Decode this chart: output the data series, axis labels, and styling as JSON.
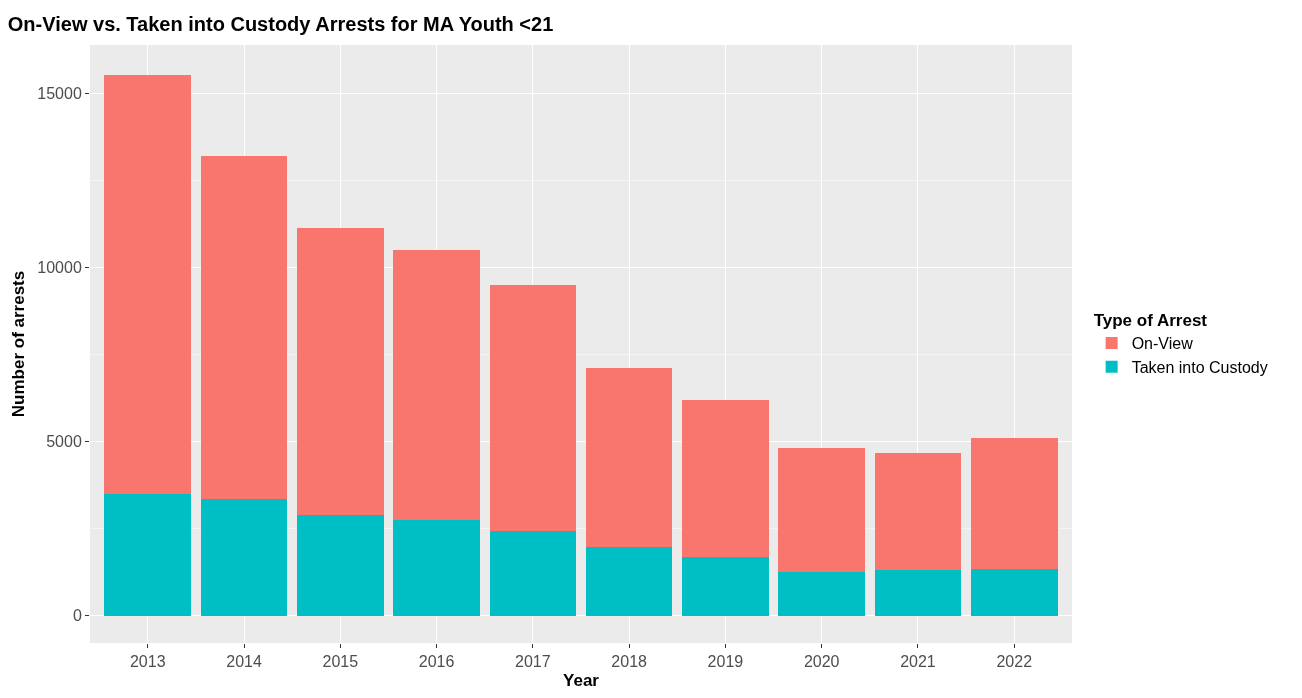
{
  "chart_data": {
    "type": "bar",
    "title": "On-View vs. Taken into Custody Arrests for MA Youth <21",
    "xlabel": "Year",
    "ylabel": "Number of arrests",
    "legend_title": "Type of Arrest",
    "categories": [
      "2013",
      "2014",
      "2015",
      "2016",
      "2017",
      "2018",
      "2019",
      "2020",
      "2021",
      "2022"
    ],
    "stacked": true,
    "series": [
      {
        "name": "Taken into Custody",
        "color": "#00bfc4",
        "values": [
          3500,
          3360,
          2890,
          2750,
          2440,
          1970,
          1690,
          1250,
          1310,
          1360
        ]
      },
      {
        "name": "On-View",
        "color": "#f8766d",
        "values": [
          12050,
          9860,
          8250,
          7750,
          7060,
          5140,
          4500,
          3560,
          3360,
          3750
        ]
      }
    ],
    "ylim": [
      -780,
      16400
    ],
    "yticks": [
      0,
      5000,
      10000,
      15000
    ],
    "grid": true,
    "legend": "right"
  }
}
